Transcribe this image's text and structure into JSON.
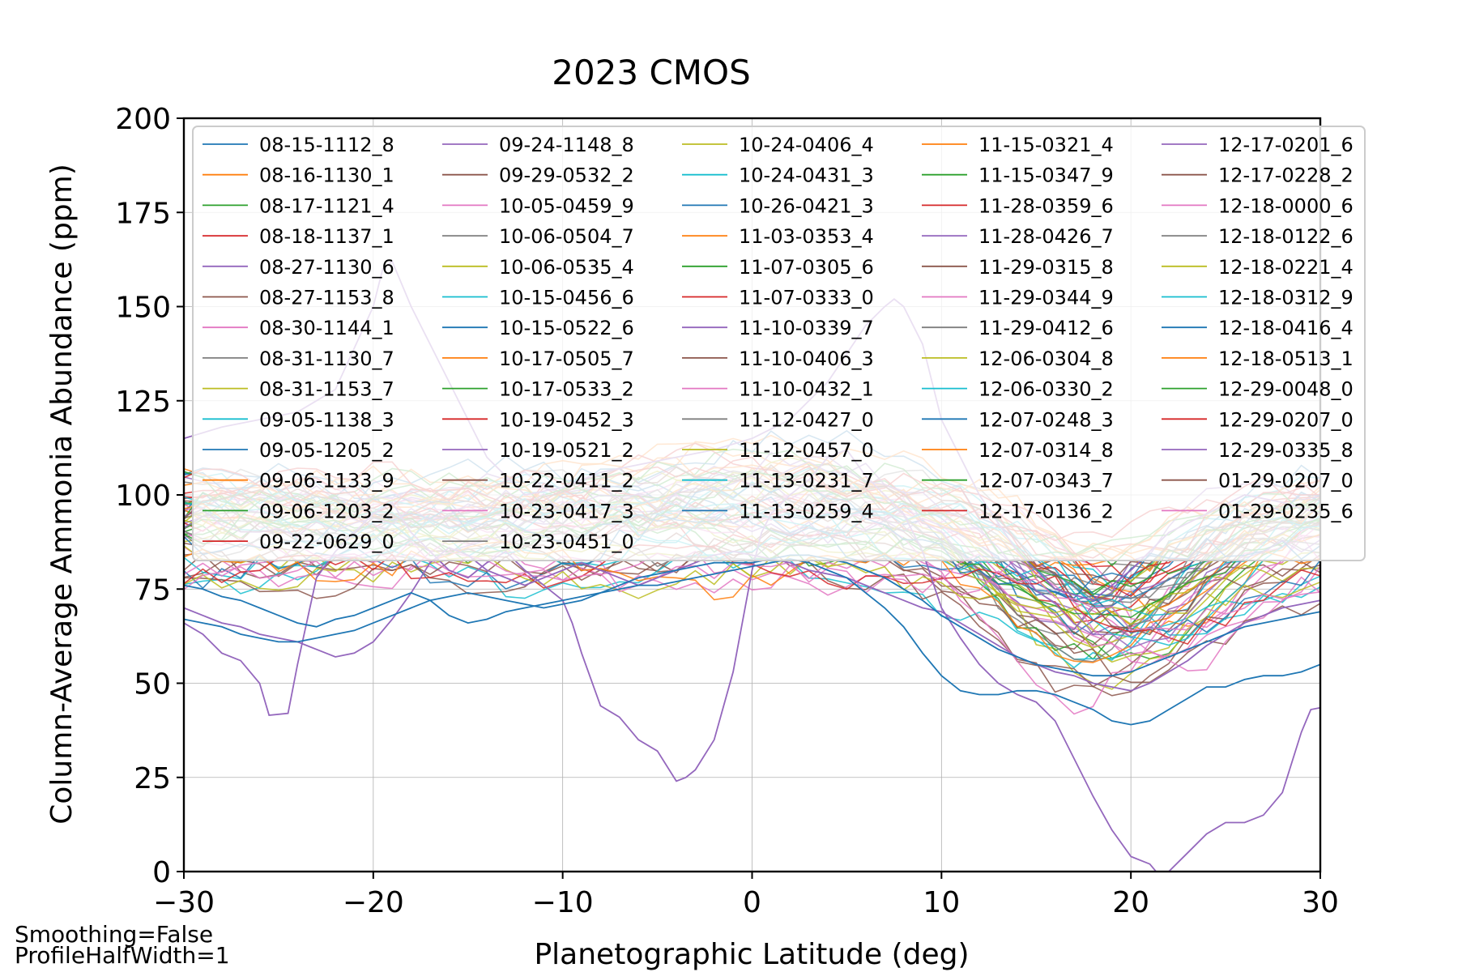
{
  "chart_data": {
    "type": "line",
    "title": "2023 CMOS",
    "xlabel": "Planetographic Latitude (deg)",
    "ylabel": "Column-Average Ammonia Abundance (ppm)",
    "xlim": [
      -30,
      30
    ],
    "ylim": [
      0,
      200
    ],
    "xticks": [
      -30,
      -20,
      -10,
      0,
      10,
      20,
      30
    ],
    "xtick_labels": [
      "−30",
      "−20",
      "−10",
      "0",
      "10",
      "20",
      "30"
    ],
    "yticks": [
      0,
      25,
      50,
      75,
      100,
      125,
      150,
      175,
      200
    ],
    "ytick_labels": [
      "0",
      "25",
      "50",
      "75",
      "100",
      "125",
      "150",
      "175",
      "200"
    ],
    "grid": true,
    "legend_position": "top-right",
    "legend_columns": 5,
    "palette": [
      "#1f77b4",
      "#ff7f0e",
      "#2ca02c",
      "#d62728",
      "#9467bd",
      "#8c564b",
      "#e377c2",
      "#7f7f7f",
      "#bcbd22",
      "#17becf"
    ],
    "series_names": [
      "08-15-1112_8",
      "08-16-1130_1",
      "08-17-1121_4",
      "08-18-1137_1",
      "08-27-1130_6",
      "08-27-1153_8",
      "08-30-1144_1",
      "08-31-1130_7",
      "08-31-1153_7",
      "09-05-1138_3",
      "09-05-1205_2",
      "09-06-1133_9",
      "09-06-1203_2",
      "09-22-0629_0",
      "09-24-1148_8",
      "09-29-0532_2",
      "10-05-0459_9",
      "10-06-0504_7",
      "10-06-0535_4",
      "10-15-0456_6",
      "10-15-0522_6",
      "10-17-0505_7",
      "10-17-0533_2",
      "10-19-0452_3",
      "10-19-0521_2",
      "10-22-0411_2",
      "10-23-0417_3",
      "10-23-0451_0",
      "10-24-0406_4",
      "10-24-0431_3",
      "10-26-0421_3",
      "11-03-0353_4",
      "11-07-0305_6",
      "11-07-0333_0",
      "11-10-0339_7",
      "11-10-0406_3",
      "11-10-0432_1",
      "11-12-0427_0",
      "11-12-0457_0",
      "11-13-0231_7",
      "11-13-0259_4",
      "11-15-0321_4",
      "11-15-0347_9",
      "11-28-0359_6",
      "11-28-0426_7",
      "11-29-0315_8",
      "11-29-0344_9",
      "11-29-0412_6",
      "12-06-0304_8",
      "12-06-0330_2",
      "12-07-0248_3",
      "12-07-0314_8",
      "12-07-0343_7",
      "12-17-0136_2",
      "12-17-0201_6",
      "12-17-0228_2",
      "12-18-0000_6",
      "12-18-0122_6",
      "12-18-0221_4",
      "12-18-0312_9",
      "12-18-0416_4",
      "12-18-0513_1",
      "12-29-0048_0",
      "12-29-0207_0",
      "12-29-0335_8",
      "01-29-0207_0",
      "01-29-0235_6"
    ],
    "highlight_series": [
      {
        "name": "11-28-0426_7",
        "x": [
          -30,
          -29,
          -28,
          -27,
          -26,
          -25.5,
          -24.5,
          -24,
          -23,
          -22,
          -21,
          -20,
          -19,
          -18,
          -17,
          -16,
          -15,
          -14,
          -13,
          -12,
          -11,
          -10,
          -9.5,
          -9,
          -8,
          -7,
          -6,
          -5,
          -4,
          -3.5,
          -3,
          -2,
          -1,
          0,
          0.5,
          1,
          2,
          3,
          4,
          5,
          6,
          7,
          8,
          9,
          10,
          11,
          12,
          13,
          14,
          15,
          16,
          17,
          18,
          19,
          20,
          21,
          21.5,
          22,
          23,
          24,
          25,
          26,
          27,
          28,
          29,
          29.5,
          30
        ],
        "y": [
          66,
          63,
          58,
          56,
          50,
          41.5,
          42,
          55,
          78,
          85,
          90,
          95,
          98,
          90,
          85,
          80,
          78,
          82,
          85,
          80,
          76,
          72,
          66,
          58,
          44,
          41,
          35,
          32,
          24,
          25,
          27,
          35,
          53,
          80,
          90,
          95,
          100,
          104,
          110,
          112,
          105,
          100,
          95,
          85,
          70,
          62,
          55,
          50,
          47,
          45,
          40,
          30,
          20,
          11,
          4,
          2,
          -1,
          0,
          5,
          10,
          13,
          13,
          15,
          21,
          37,
          43,
          43.5
        ]
      },
      {
        "name": "09-24-1148_8",
        "x": [
          -30,
          -29,
          -28,
          -27,
          -26,
          -25,
          -24,
          -23,
          -22,
          -21,
          -20,
          -19,
          -18,
          -17,
          -16,
          -15,
          -14,
          -13,
          -12,
          -11,
          -10,
          -9,
          -8,
          -7,
          -6,
          -5,
          -4,
          -3,
          -2,
          -1,
          0,
          1,
          2,
          3,
          4,
          5,
          6,
          7,
          8,
          9,
          10,
          11,
          12,
          13,
          14,
          15,
          16,
          17,
          18,
          19,
          20,
          21,
          22,
          23,
          24,
          25,
          26,
          27,
          28,
          29,
          30
        ],
        "y": [
          70,
          68,
          66,
          65,
          63,
          62,
          61,
          59,
          57,
          58,
          61,
          67,
          74,
          82,
          86,
          84,
          80,
          78,
          76,
          78,
          80,
          82,
          80,
          78,
          76,
          78,
          80,
          82,
          84,
          85,
          84,
          83,
          82,
          80,
          79,
          78,
          76,
          74,
          72,
          70,
          69,
          66,
          63,
          60,
          57,
          55,
          53,
          52,
          50,
          49,
          48,
          50,
          53,
          56,
          60,
          63,
          66,
          68,
          70,
          71,
          72
        ]
      },
      {
        "name": "08-15-1112_8",
        "x": [
          -30,
          -29,
          -28,
          -27,
          -26,
          -25,
          -24,
          -23,
          -22,
          -21,
          -20,
          -19,
          -18,
          -17,
          -16,
          -15,
          -14,
          -13,
          -12,
          -11,
          -10,
          -9,
          -8,
          -7,
          -6,
          -5,
          -4,
          -3,
          -2,
          -1,
          0,
          1,
          2,
          3,
          4,
          5,
          6,
          7,
          8,
          9,
          10,
          11,
          12,
          13,
          14,
          15,
          16,
          17,
          18,
          19,
          20,
          21,
          22,
          23,
          24,
          25,
          26,
          27,
          28,
          29,
          30
        ],
        "y": [
          76,
          75,
          73,
          72,
          70,
          68,
          66,
          65,
          67,
          68,
          70,
          72,
          74,
          72,
          68,
          66,
          67,
          69,
          70,
          71,
          72,
          73,
          74,
          75,
          76,
          76,
          77,
          78,
          79,
          80,
          81,
          82,
          83,
          82,
          80,
          78,
          74,
          70,
          65,
          58,
          52,
          48,
          47,
          47,
          48,
          48,
          47,
          45,
          43,
          40,
          39,
          40,
          43,
          46,
          49,
          49,
          51,
          52,
          52,
          53,
          55
        ]
      },
      {
        "name": "10-26-0421_3",
        "x": [
          -30,
          -29,
          -28,
          -27,
          -26,
          -25,
          -24,
          -23,
          -22,
          -21,
          -20,
          -19,
          -18,
          -17,
          -16,
          -15,
          -14,
          -13,
          -12,
          -11,
          -10,
          -9,
          -8,
          -7,
          -6,
          -5,
          -4,
          -3,
          -2,
          -1,
          0,
          1,
          2,
          3,
          4,
          5,
          6,
          7,
          8,
          9,
          10,
          11,
          12,
          13,
          14,
          15,
          16,
          17,
          18,
          19,
          20,
          21,
          22,
          23,
          24,
          25,
          26,
          27,
          28,
          29,
          30
        ],
        "y": [
          67,
          66,
          65,
          63,
          62,
          61,
          61,
          62,
          63,
          64,
          66,
          68,
          70,
          72,
          73,
          74,
          73,
          72,
          71,
          70,
          71,
          72,
          74,
          76,
          78,
          79,
          80,
          81,
          82,
          82,
          82,
          83,
          84,
          84,
          83,
          82,
          80,
          78,
          75,
          72,
          68,
          65,
          62,
          59,
          57,
          55,
          54,
          53,
          52,
          52,
          53,
          55,
          57,
          59,
          61,
          63,
          65,
          66,
          67,
          68,
          69
        ]
      },
      {
        "name": "12-17-0201_6",
        "x": [
          -30,
          -28,
          -26,
          -24,
          -22,
          -20,
          -19.5,
          -19,
          -18,
          -16,
          -14,
          -12,
          -10,
          -8,
          -6,
          -4,
          -2,
          0,
          2,
          4,
          6,
          7,
          7.5,
          8,
          9,
          10,
          12,
          14,
          16,
          18,
          20,
          22,
          24,
          26,
          28,
          30
        ],
        "y": [
          115,
          118,
          120,
          122,
          128,
          150,
          160,
          162,
          150,
          130,
          110,
          100,
          102,
          106,
          108,
          110,
          112,
          115,
          120,
          130,
          145,
          150,
          152,
          150,
          140,
          120,
          100,
          85,
          75,
          72,
          80,
          90,
          95,
          100,
          98,
          95
        ]
      }
    ]
  },
  "notes": [
    "Smoothing=False",
    "ProfileHalfWidth=1"
  ]
}
